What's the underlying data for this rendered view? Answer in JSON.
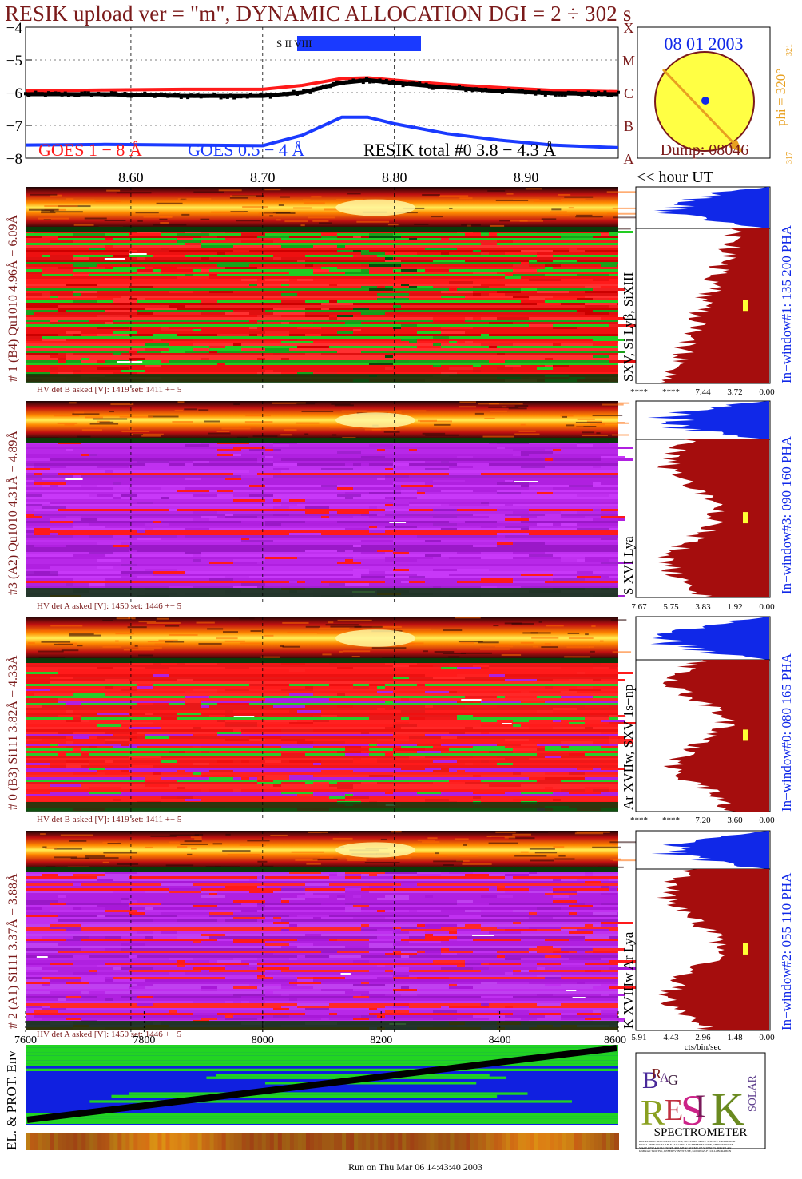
{
  "header": {
    "title": "RESIK upload ver = \"m\", DYNAMIC ALLOCATION  DGI =   2 ÷ 302 s"
  },
  "colors": {
    "maroon": "#7a1a1a",
    "goes_long": "#ff1a1a",
    "goes_short": "#1a3aff",
    "resik_total": "#000000",
    "orange": "#e8a020",
    "hist_blue": "#1028e8",
    "hist_red": "#a50d0d",
    "env_green": "#22d422",
    "env_blue": "#1020e0"
  },
  "chart_data": [
    {
      "type": "line",
      "panel": "goes-lightcurve",
      "ylim": [
        -8,
        -4
      ],
      "y_ticks": [
        "−4",
        "−5",
        "−6",
        "−7",
        "−8"
      ],
      "x_range_hours": [
        8.52,
        8.97
      ],
      "x_ticks": [
        "8.60",
        "8.70",
        "8.80",
        "8.90"
      ],
      "x_tick_values": [
        8.6,
        8.7,
        8.8,
        8.9
      ],
      "goes_class_labels": [
        "X",
        "M",
        "C",
        "B",
        "A"
      ],
      "x_note": "<< hour UT",
      "series": [
        {
          "name": "GOES 1 − 8 Å",
          "x": [
            8.52,
            8.58,
            8.64,
            8.7,
            8.73,
            8.76,
            8.78,
            8.8,
            8.84,
            8.88,
            8.92,
            8.97
          ],
          "values": [
            -5.95,
            -5.92,
            -5.9,
            -5.9,
            -5.78,
            -5.57,
            -5.55,
            -5.62,
            -5.75,
            -5.85,
            -5.93,
            -5.97
          ]
        },
        {
          "name": "GOES 0.5 − 4 Å",
          "x": [
            8.52,
            8.58,
            8.64,
            8.7,
            8.73,
            8.76,
            8.78,
            8.8,
            8.84,
            8.88,
            8.92,
            8.97
          ],
          "values": [
            -7.6,
            -7.58,
            -7.6,
            -7.62,
            -7.3,
            -6.75,
            -6.75,
            -6.95,
            -7.25,
            -7.45,
            -7.6,
            -7.68
          ]
        },
        {
          "name": "RESIK total #0  3.8 − 4.3 Å",
          "x": [
            8.52,
            8.58,
            8.64,
            8.7,
            8.73,
            8.76,
            8.78,
            8.8,
            8.84,
            8.88,
            8.92,
            8.97
          ],
          "values": [
            -6.05,
            -6.05,
            -6.1,
            -6.1,
            -6.0,
            -5.7,
            -5.62,
            -5.7,
            -5.85,
            -5.95,
            -6.02,
            -6.05
          ]
        }
      ],
      "marker_label": "S II VIII"
    },
    {
      "type": "heatmap",
      "panel": "detector-1",
      "left_label": "# 1 (B4) Qu1010 4.96Å − 6.09Å",
      "line_label": "SXV, Si Lyβ, SiXIII",
      "window_label": "In−window#1:  135 200 PHA",
      "hv_text": "HV det B asked [V]:  1419 set:  1411  +−   5",
      "dominant": "green-red",
      "histogram_ticks": [
        "****",
        "****",
        "7.44",
        "3.72",
        "0.00"
      ]
    },
    {
      "type": "heatmap",
      "panel": "detector-3",
      "left_label": "#3 (A2) Qu1010  4.31Å − 4.89Å",
      "line_label": "S XVI Lya",
      "window_label": "In−window#3:  090 160 PHA",
      "hv_text": "HV det A asked [V]:  1450 set:  1446  +−   5",
      "dominant": "purple",
      "histogram_ticks": [
        "7.67",
        "5.75",
        "3.83",
        "1.92",
        "0.00"
      ]
    },
    {
      "type": "heatmap",
      "panel": "detector-0",
      "left_label": "# 0 (B3) Si111  3.82Å − 4.33Å",
      "line_label": "Ar XVIIw,  SXV 1s−np",
      "window_label": "In−window#0:  080 165 PHA",
      "hv_text": "HV det B asked [V]:  1419 set:  1411  +−   5",
      "dominant": "red",
      "histogram_ticks": [
        "****",
        "****",
        "7.20",
        "3.60",
        "0.00"
      ]
    },
    {
      "type": "heatmap",
      "panel": "detector-2",
      "left_label": "# 2 (A1) Si111  3.37Å − 3.88Å",
      "line_label": "K XVIIIw  Ar Lya",
      "window_label": "In−window#2:  055 110 PHA",
      "hv_text": "HV det A asked [V]:  1450 set:  1446  +−   5",
      "dominant": "purple",
      "histogram_ticks": [
        "5.91",
        "4.43",
        "2.96",
        "1.48",
        "0.00"
      ],
      "histogram_xlabel": "cts/bin/sec"
    },
    {
      "type": "heatmap",
      "panel": "particle-env",
      "x_ticks": [
        "7600",
        "7800",
        "8000",
        "8200",
        "8400",
        "8600"
      ],
      "x_tick_values": [
        7600,
        7800,
        8000,
        8200,
        8400,
        8600
      ],
      "xlim": [
        7600,
        8600
      ],
      "ylabel": "EL. & PROT. Env"
    }
  ],
  "sun_panel": {
    "date": "08 01 2003",
    "phi": "phi = 320°",
    "phi_sup": "321",
    "phi_sub": "317",
    "dump": "Dump: 08046"
  },
  "logo": {
    "letters_top": [
      "B",
      "R",
      "A",
      "G"
    ],
    "letters_mid": [
      "R",
      "E",
      "S",
      "I",
      "K"
    ],
    "word_solar": "SOLAR",
    "word_spectrometer": "SPECTROMETER",
    "fine_print": [
      "RAL REMOTE SPACE RES. CENTER, MULLARD SPACE SCIENCE LABORATORY",
      "NAVAL RESEARCH LAB, NASA GSFC, LOCKHEED MARTIN, ABERYSTWYTH",
      "SPACE RESEARCH CENTRE, POLISH ACADEMY OF SCIENCES, WROCLAW",
      "IZMIRAN TROITSK, LEBEDEV INSTITUTE, KORONAS-F COLLABORATION"
    ]
  },
  "footer": {
    "run_text": "Run on Thu Mar 06 14:43:40 2003"
  }
}
